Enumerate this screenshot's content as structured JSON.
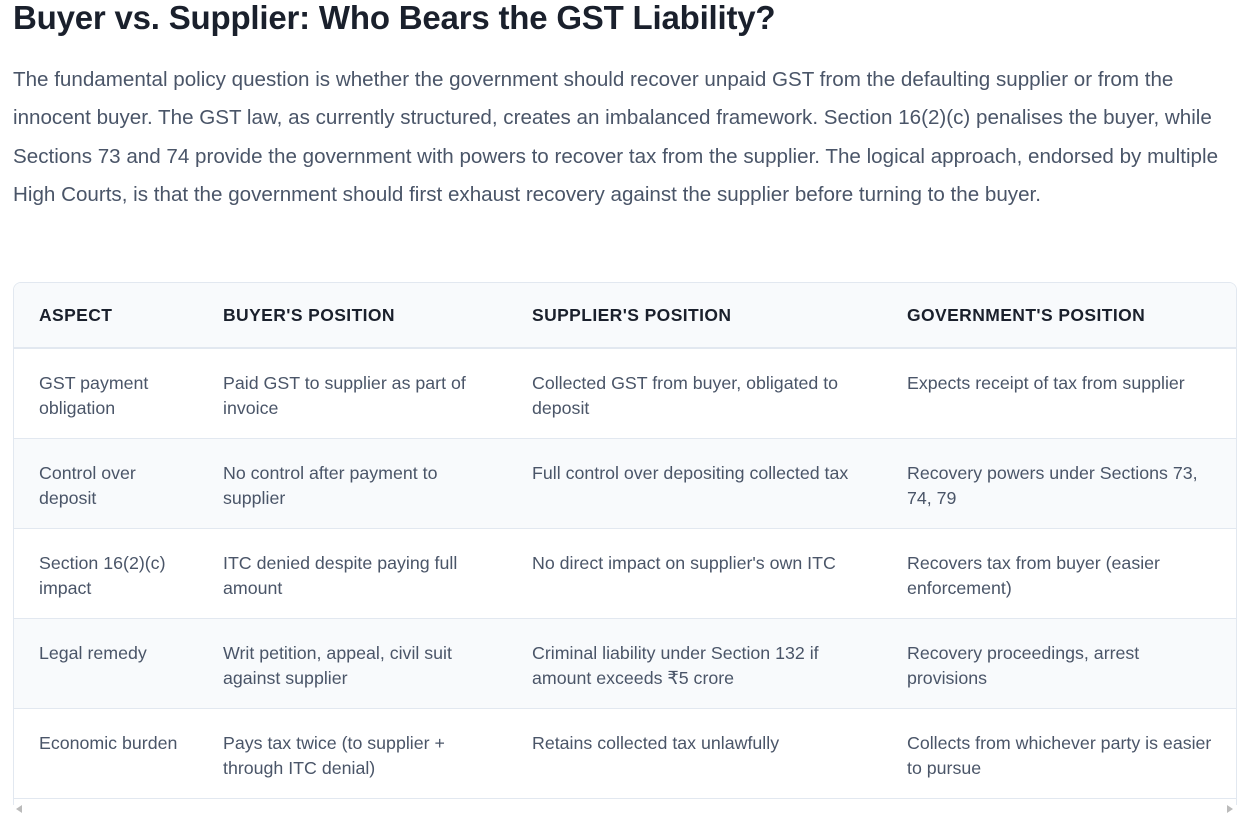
{
  "header": {
    "title": "Buyer vs. Supplier: Who Bears the GST Liability?"
  },
  "paragraph": "The fundamental policy question is whether the government should recover unpaid GST from the defaulting supplier or from the innocent buyer. The GST law, as currently structured, creates an imbalanced framework. Section 16(2)(c) penalises the buyer, while Sections 73 and 74 provide the government with powers to recover tax from the supplier. The logical approach, endorsed by multiple High Courts, is that the government should first exhaust recovery against the supplier before turning to the buyer.",
  "table": {
    "columns": [
      "ASPECT",
      "BUYER'S POSITION",
      "SUPPLIER'S POSITION",
      "GOVERNMENT'S POSITION"
    ],
    "rows": [
      [
        "GST payment obligation",
        "Paid GST to supplier as part of invoice",
        "Collected GST from buyer, obligated to deposit",
        "Expects receipt of tax from supplier"
      ],
      [
        "Control over deposit",
        "No control after payment to supplier",
        "Full control over depositing collected tax",
        "Recovery powers under Sections 73, 74, 79"
      ],
      [
        "Section 16(2)(c) impact",
        "ITC denied despite paying full amount",
        "No direct impact on supplier's own ITC",
        "Recovers tax from buyer (easier enforcement)"
      ],
      [
        "Legal remedy",
        "Writ petition, appeal, civil suit against supplier",
        "Criminal liability under Section 132 if amount exceeds ₹5 crore",
        "Recovery proceedings, arrest provisions"
      ],
      [
        "Economic burden",
        "Pays tax twice (to supplier + through ITC denial)",
        "Retains collected tax unlawfully",
        "Collects from whichever party is easier to pursue"
      ]
    ]
  }
}
